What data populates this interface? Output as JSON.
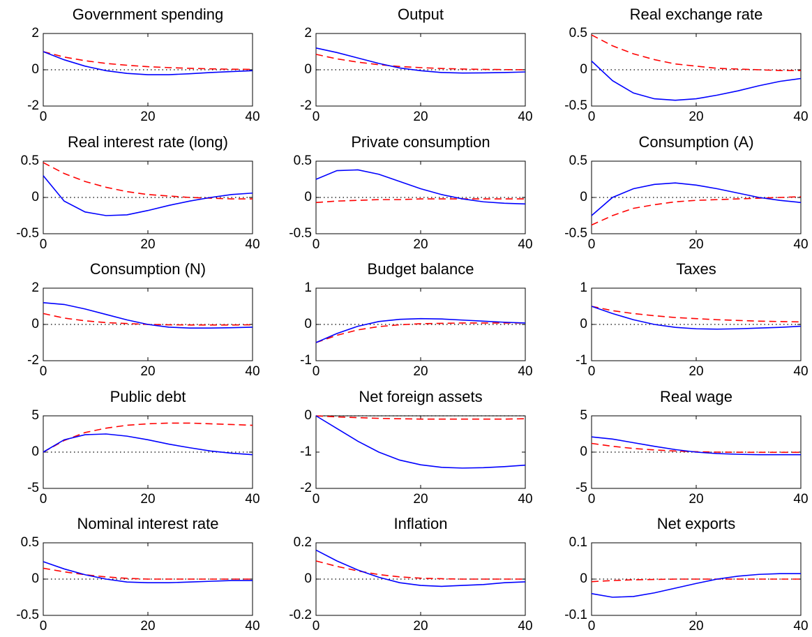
{
  "chart_data": [
    {
      "type": "line",
      "title": "Government spending",
      "x": [
        0,
        4,
        8,
        12,
        16,
        20,
        24,
        28,
        32,
        36,
        40
      ],
      "xlim": [
        0,
        40
      ],
      "xticks": [
        0,
        20,
        40
      ],
      "ylim": [
        -2,
        2
      ],
      "yticks": [
        -2,
        0,
        2
      ],
      "series": [
        {
          "color": "#0000ff",
          "style": "solid",
          "values": [
            1.0,
            0.55,
            0.2,
            -0.05,
            -0.2,
            -0.27,
            -0.27,
            -0.22,
            -0.15,
            -0.1,
            -0.05
          ]
        },
        {
          "color": "#ff0000",
          "style": "dashed",
          "values": [
            1.0,
            0.7,
            0.5,
            0.35,
            0.25,
            0.17,
            0.12,
            0.08,
            0.05,
            0.03,
            0.02
          ]
        }
      ]
    },
    {
      "type": "line",
      "title": "Output",
      "x": [
        0,
        4,
        8,
        12,
        16,
        20,
        24,
        28,
        32,
        36,
        40
      ],
      "xlim": [
        0,
        40
      ],
      "xticks": [
        0,
        20,
        40
      ],
      "ylim": [
        -2,
        2
      ],
      "yticks": [
        -2,
        0,
        2
      ],
      "series": [
        {
          "color": "#0000ff",
          "style": "solid",
          "values": [
            1.2,
            0.95,
            0.65,
            0.35,
            0.1,
            -0.05,
            -0.15,
            -0.18,
            -0.17,
            -0.15,
            -0.12
          ]
        },
        {
          "color": "#ff0000",
          "style": "dashed",
          "values": [
            0.85,
            0.6,
            0.42,
            0.28,
            0.18,
            0.12,
            0.07,
            0.04,
            0.02,
            0.01,
            0.0
          ]
        }
      ]
    },
    {
      "type": "line",
      "title": "Real exchange rate",
      "x": [
        0,
        4,
        8,
        12,
        16,
        20,
        24,
        28,
        32,
        36,
        40
      ],
      "xlim": [
        0,
        40
      ],
      "xticks": [
        0,
        20,
        40
      ],
      "ylim": [
        -0.5,
        0.5
      ],
      "yticks": [
        -0.5,
        0,
        0.5
      ],
      "series": [
        {
          "color": "#0000ff",
          "style": "solid",
          "values": [
            0.12,
            -0.15,
            -0.32,
            -0.4,
            -0.42,
            -0.4,
            -0.35,
            -0.29,
            -0.22,
            -0.16,
            -0.12
          ]
        },
        {
          "color": "#ff0000",
          "style": "dashed",
          "values": [
            0.48,
            0.33,
            0.22,
            0.14,
            0.08,
            0.05,
            0.02,
            0.01,
            0.0,
            -0.01,
            -0.01
          ]
        }
      ]
    },
    {
      "type": "line",
      "title": "Real interest rate (long)",
      "x": [
        0,
        4,
        8,
        12,
        16,
        20,
        24,
        28,
        32,
        36,
        40
      ],
      "xlim": [
        0,
        40
      ],
      "xticks": [
        0,
        20,
        40
      ],
      "ylim": [
        -0.5,
        0.5
      ],
      "yticks": [
        -0.5,
        0,
        0.5
      ],
      "series": [
        {
          "color": "#0000ff",
          "style": "solid",
          "values": [
            0.3,
            -0.05,
            -0.2,
            -0.25,
            -0.24,
            -0.18,
            -0.11,
            -0.05,
            0.0,
            0.04,
            0.06
          ]
        },
        {
          "color": "#ff0000",
          "style": "dashed",
          "values": [
            0.48,
            0.33,
            0.22,
            0.14,
            0.08,
            0.04,
            0.02,
            0.0,
            -0.01,
            -0.02,
            -0.02
          ]
        }
      ]
    },
    {
      "type": "line",
      "title": "Private consumption",
      "x": [
        0,
        4,
        8,
        12,
        16,
        20,
        24,
        28,
        32,
        36,
        40
      ],
      "xlim": [
        0,
        40
      ],
      "xticks": [
        0,
        20,
        40
      ],
      "ylim": [
        -0.5,
        0.5
      ],
      "yticks": [
        -0.5,
        0,
        0.5
      ],
      "series": [
        {
          "color": "#0000ff",
          "style": "solid",
          "values": [
            0.25,
            0.37,
            0.38,
            0.32,
            0.22,
            0.12,
            0.04,
            -0.02,
            -0.06,
            -0.08,
            -0.09
          ]
        },
        {
          "color": "#ff0000",
          "style": "dashed",
          "values": [
            -0.07,
            -0.05,
            -0.04,
            -0.03,
            -0.03,
            -0.02,
            -0.02,
            -0.02,
            -0.02,
            -0.02,
            -0.02
          ]
        }
      ]
    },
    {
      "type": "line",
      "title": "Consumption (A)",
      "x": [
        0,
        4,
        8,
        12,
        16,
        20,
        24,
        28,
        32,
        36,
        40
      ],
      "xlim": [
        0,
        40
      ],
      "xticks": [
        0,
        20,
        40
      ],
      "ylim": [
        -0.5,
        0.5
      ],
      "yticks": [
        -0.5,
        0,
        0.5
      ],
      "series": [
        {
          "color": "#0000ff",
          "style": "solid",
          "values": [
            -0.25,
            0.0,
            0.12,
            0.18,
            0.2,
            0.17,
            0.12,
            0.06,
            0.0,
            -0.04,
            -0.07
          ]
        },
        {
          "color": "#ff0000",
          "style": "dashed",
          "values": [
            -0.38,
            -0.25,
            -0.15,
            -0.1,
            -0.06,
            -0.04,
            -0.03,
            -0.02,
            -0.01,
            0.0,
            0.01
          ]
        }
      ]
    },
    {
      "type": "line",
      "title": "Consumption (N)",
      "x": [
        0,
        4,
        8,
        12,
        16,
        20,
        24,
        28,
        32,
        36,
        40
      ],
      "xlim": [
        0,
        40
      ],
      "xticks": [
        0,
        20,
        40
      ],
      "ylim": [
        -2,
        2
      ],
      "yticks": [
        -2,
        0,
        2
      ],
      "series": [
        {
          "color": "#0000ff",
          "style": "solid",
          "values": [
            1.2,
            1.1,
            0.85,
            0.55,
            0.25,
            0.0,
            -0.15,
            -0.2,
            -0.2,
            -0.18,
            -0.15
          ]
        },
        {
          "color": "#ff0000",
          "style": "dashed",
          "values": [
            0.6,
            0.35,
            0.2,
            0.1,
            0.05,
            0.0,
            -0.02,
            -0.03,
            -0.03,
            -0.03,
            -0.02
          ]
        }
      ]
    },
    {
      "type": "line",
      "title": "Budget balance",
      "x": [
        0,
        4,
        8,
        12,
        16,
        20,
        24,
        28,
        32,
        36,
        40
      ],
      "xlim": [
        0,
        40
      ],
      "xticks": [
        0,
        20,
        40
      ],
      "ylim": [
        -1,
        1
      ],
      "yticks": [
        -1,
        0,
        1
      ],
      "series": [
        {
          "color": "#0000ff",
          "style": "solid",
          "values": [
            -0.5,
            -0.25,
            -0.05,
            0.08,
            0.14,
            0.16,
            0.15,
            0.12,
            0.09,
            0.06,
            0.04
          ]
        },
        {
          "color": "#ff0000",
          "style": "dashed",
          "values": [
            -0.5,
            -0.3,
            -0.15,
            -0.06,
            -0.01,
            0.02,
            0.03,
            0.04,
            0.04,
            0.04,
            0.04
          ]
        }
      ]
    },
    {
      "type": "line",
      "title": "Taxes",
      "x": [
        0,
        4,
        8,
        12,
        16,
        20,
        24,
        28,
        32,
        36,
        40
      ],
      "xlim": [
        0,
        40
      ],
      "xticks": [
        0,
        20,
        40
      ],
      "ylim": [
        -1,
        1
      ],
      "yticks": [
        -1,
        0,
        1
      ],
      "series": [
        {
          "color": "#0000ff",
          "style": "solid",
          "values": [
            0.5,
            0.3,
            0.13,
            0.0,
            -0.08,
            -0.12,
            -0.13,
            -0.12,
            -0.1,
            -0.08,
            -0.05
          ]
        },
        {
          "color": "#ff0000",
          "style": "dashed",
          "values": [
            0.5,
            0.38,
            0.3,
            0.24,
            0.19,
            0.16,
            0.13,
            0.11,
            0.09,
            0.08,
            0.07
          ]
        }
      ]
    },
    {
      "type": "line",
      "title": "Public debt",
      "x": [
        0,
        4,
        8,
        12,
        16,
        20,
        24,
        28,
        32,
        36,
        40
      ],
      "xlim": [
        0,
        40
      ],
      "xticks": [
        0,
        20,
        40
      ],
      "ylim": [
        -5,
        5
      ],
      "yticks": [
        -5,
        0,
        5
      ],
      "series": [
        {
          "color": "#0000ff",
          "style": "solid",
          "values": [
            0,
            1.7,
            2.4,
            2.5,
            2.2,
            1.7,
            1.1,
            0.6,
            0.15,
            -0.15,
            -0.35
          ]
        },
        {
          "color": "#ff0000",
          "style": "dashed",
          "values": [
            0,
            1.6,
            2.7,
            3.3,
            3.7,
            3.9,
            4.0,
            4.0,
            3.9,
            3.8,
            3.7
          ]
        }
      ]
    },
    {
      "type": "line",
      "title": "Net foreign assets",
      "x": [
        0,
        4,
        8,
        12,
        16,
        20,
        24,
        28,
        32,
        36,
        40
      ],
      "xlim": [
        0,
        40
      ],
      "xticks": [
        0,
        20,
        40
      ],
      "ylim": [
        -2,
        0
      ],
      "yticks": [
        -2,
        -1,
        0
      ],
      "series": [
        {
          "color": "#0000ff",
          "style": "solid",
          "values": [
            0,
            -0.35,
            -0.7,
            -1.0,
            -1.22,
            -1.35,
            -1.42,
            -1.44,
            -1.43,
            -1.4,
            -1.36
          ]
        },
        {
          "color": "#ff0000",
          "style": "dashed",
          "values": [
            0,
            -0.03,
            -0.05,
            -0.07,
            -0.08,
            -0.09,
            -0.09,
            -0.09,
            -0.09,
            -0.09,
            -0.08
          ]
        }
      ]
    },
    {
      "type": "line",
      "title": "Real wage",
      "x": [
        0,
        4,
        8,
        12,
        16,
        20,
        24,
        28,
        32,
        36,
        40
      ],
      "xlim": [
        0,
        40
      ],
      "xticks": [
        0,
        20,
        40
      ],
      "ylim": [
        -5,
        5
      ],
      "yticks": [
        -5,
        0,
        5
      ],
      "series": [
        {
          "color": "#0000ff",
          "style": "solid",
          "values": [
            2.1,
            1.8,
            1.3,
            0.8,
            0.35,
            0.0,
            -0.2,
            -0.3,
            -0.35,
            -0.35,
            -0.35
          ]
        },
        {
          "color": "#ff0000",
          "style": "dashed",
          "values": [
            1.2,
            0.8,
            0.5,
            0.3,
            0.15,
            0.05,
            0.0,
            -0.02,
            -0.03,
            -0.03,
            -0.03
          ]
        }
      ]
    },
    {
      "type": "line",
      "title": "Nominal interest rate",
      "x": [
        0,
        4,
        8,
        12,
        16,
        20,
        24,
        28,
        32,
        36,
        40
      ],
      "xlim": [
        0,
        40
      ],
      "xticks": [
        0,
        20,
        40
      ],
      "ylim": [
        -0.5,
        0.5
      ],
      "yticks": [
        -0.5,
        0,
        0.5
      ],
      "series": [
        {
          "color": "#0000ff",
          "style": "solid",
          "values": [
            0.24,
            0.14,
            0.06,
            0.0,
            -0.04,
            -0.05,
            -0.05,
            -0.04,
            -0.03,
            -0.02,
            -0.02
          ]
        },
        {
          "color": "#ff0000",
          "style": "dashed",
          "values": [
            0.15,
            0.1,
            0.06,
            0.03,
            0.01,
            0.0,
            0.0,
            0.0,
            0.0,
            0.0,
            0.0
          ]
        }
      ]
    },
    {
      "type": "line",
      "title": "Inflation",
      "x": [
        0,
        4,
        8,
        12,
        16,
        20,
        24,
        28,
        32,
        36,
        40
      ],
      "xlim": [
        0,
        40
      ],
      "xticks": [
        0,
        20,
        40
      ],
      "ylim": [
        -0.2,
        0.2
      ],
      "yticks": [
        -0.2,
        0,
        0.2
      ],
      "series": [
        {
          "color": "#0000ff",
          "style": "solid",
          "values": [
            0.16,
            0.1,
            0.05,
            0.01,
            -0.02,
            -0.035,
            -0.04,
            -0.035,
            -0.03,
            -0.02,
            -0.015
          ]
        },
        {
          "color": "#ff0000",
          "style": "dashed",
          "values": [
            0.1,
            0.07,
            0.045,
            0.025,
            0.012,
            0.005,
            0.002,
            0,
            0,
            0,
            0
          ]
        }
      ]
    },
    {
      "type": "line",
      "title": "Net exports",
      "x": [
        0,
        4,
        8,
        12,
        16,
        20,
        24,
        28,
        32,
        36,
        40
      ],
      "xlim": [
        0,
        40
      ],
      "xticks": [
        0,
        20,
        40
      ],
      "ylim": [
        -0.1,
        0.1
      ],
      "yticks": [
        -0.1,
        0,
        0.1
      ],
      "series": [
        {
          "color": "#0000ff",
          "style": "solid",
          "values": [
            -0.04,
            -0.05,
            -0.048,
            -0.038,
            -0.025,
            -0.012,
            0.0,
            0.008,
            0.013,
            0.015,
            0.015
          ]
        },
        {
          "color": "#ff0000",
          "style": "dashed",
          "values": [
            -0.007,
            -0.004,
            -0.002,
            -0.001,
            0,
            0,
            0,
            0,
            0,
            0,
            0
          ]
        }
      ]
    }
  ]
}
